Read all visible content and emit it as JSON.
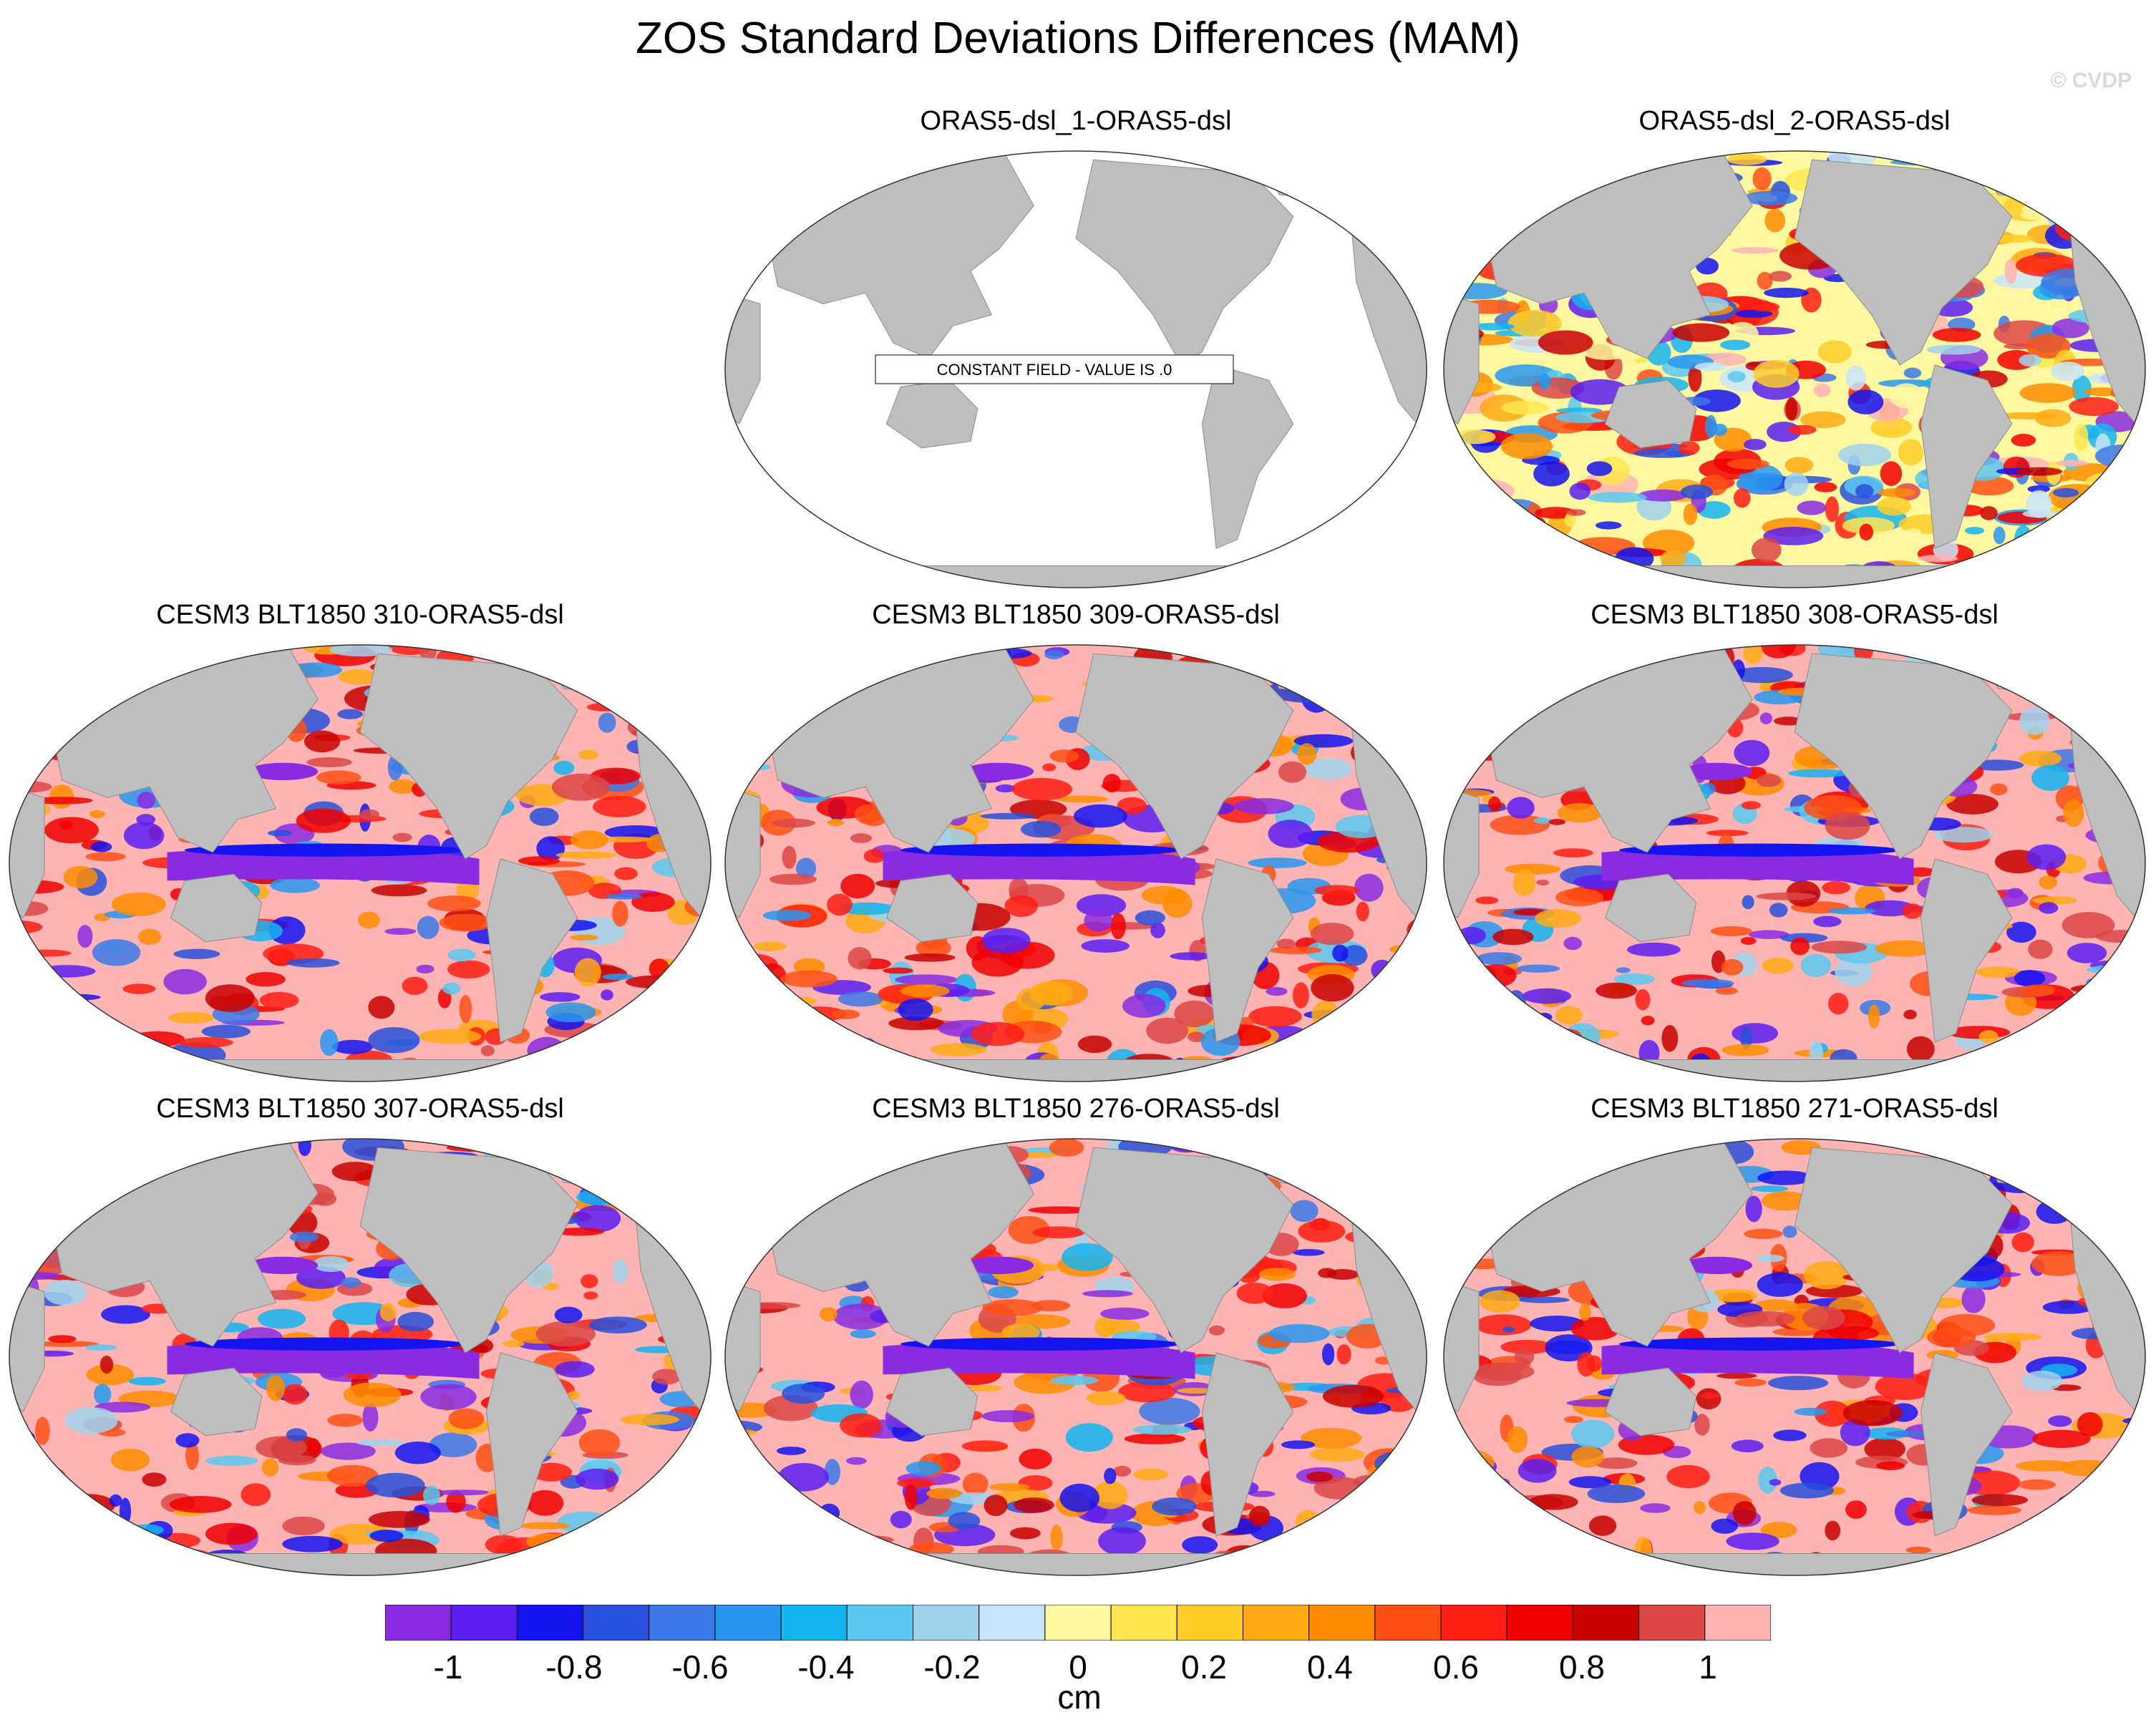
{
  "title": "ZOS Standard Deviations Differences (MAM)",
  "credit": "© CVDP",
  "panels": [
    {
      "label": "ORAS5-dsl_1-ORAS5-dsl",
      "style": "constant",
      "note": "CONSTANT FIELD - VALUE IS .0"
    },
    {
      "label": "ORAS5-dsl_2-ORAS5-dsl",
      "style": "noisy"
    },
    {
      "label": "CESM3 BLT1850 310-ORAS5-dsl",
      "style": "model"
    },
    {
      "label": "CESM3 BLT1850 309-ORAS5-dsl",
      "style": "model"
    },
    {
      "label": "CESM3 BLT1850 308-ORAS5-dsl",
      "style": "model"
    },
    {
      "label": "CESM3 BLT1850 307-ORAS5-dsl",
      "style": "model"
    },
    {
      "label": "CESM3 BLT1850 276-ORAS5-dsl",
      "style": "model"
    },
    {
      "label": "CESM3 BLT1850 271-ORAS5-dsl",
      "style": "model"
    }
  ],
  "colorbar": {
    "units": "cm",
    "min": -1.1,
    "max": 1.1,
    "tick_labels": [
      "-1",
      "-0.8",
      "-0.6",
      "-0.4",
      "-0.2",
      "0",
      "0.2",
      "0.4",
      "0.6",
      "0.8",
      "1"
    ],
    "tick_values": [
      -1,
      -0.8,
      -0.6,
      -0.4,
      -0.2,
      0,
      0.2,
      0.4,
      0.6,
      0.8,
      1
    ],
    "colors": [
      "#8a2be2",
      "#5a1ef0",
      "#1414f0",
      "#2850dc",
      "#3c78e6",
      "#2896f0",
      "#14b4f0",
      "#5ac8f0",
      "#a0d2ec",
      "#c8e4f8",
      "#fff8a0",
      "#ffe650",
      "#ffcc28",
      "#ffaa14",
      "#ff8c00",
      "#ff5014",
      "#ff1e14",
      "#f00000",
      "#c80000",
      "#dc4646",
      "#ffb4b4"
    ]
  }
}
